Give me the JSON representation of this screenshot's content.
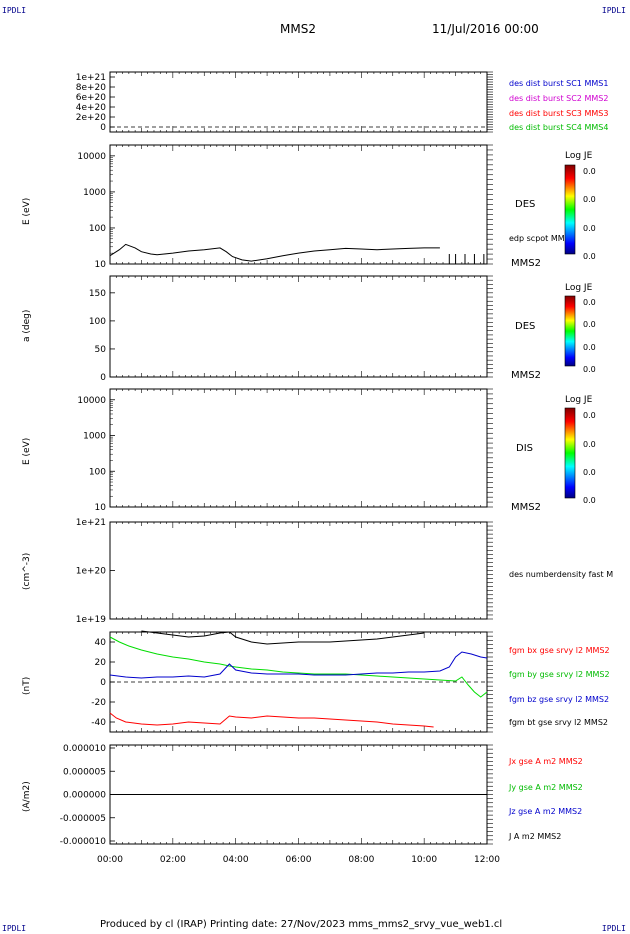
{
  "corners": {
    "tl": "IPDLI",
    "tr": "IPDLI",
    "bl": "IPDLI",
    "br": "IPDLI"
  },
  "header": {
    "spacecraft": "MMS2",
    "date": "11/Jul/2016 00:00"
  },
  "footer": {
    "text": "Produced by cl (IRAP)   Printing date: 27/Nov/2023   mms_mms2_srvy_vue_web1.cl"
  },
  "colors": {
    "black": "#000000",
    "red": "#ff0000",
    "green": "#00dd00",
    "blue": "#0000cc",
    "magenta": "#d000d0"
  },
  "panels": {
    "p1": {
      "ylabel": "",
      "ticks": [
        "1e+21",
        "8e+20",
        "6e+20",
        "4e+20",
        "2e+20",
        "0"
      ],
      "legend": [
        {
          "text": "des dist burst SC1 MMS1",
          "color": "#0000cc"
        },
        {
          "text": "des dist burst SC2 MMS2",
          "color": "#d000d0"
        },
        {
          "text": "des dist burst SC3 MMS3",
          "color": "#ff0000"
        },
        {
          "text": "des dist burst SC4 MMS4",
          "color": "#00bb00"
        }
      ]
    },
    "p2": {
      "ylabel": "E (eV)",
      "ticks": [
        "10000",
        "1000",
        "100",
        "10"
      ],
      "species": "DES",
      "spacecraft": "MMS2",
      "extra": "edp scpot MMS2",
      "cbar_title": "Log JE",
      "cbar_ticks": [
        "0.0",
        "0.0",
        "0.0",
        "0.0"
      ]
    },
    "p3": {
      "ylabel": "a (deg)",
      "ticks": [
        "150",
        "100",
        "50",
        "0"
      ],
      "species": "DES",
      "spacecraft": "MMS2",
      "cbar_title": "Log JE",
      "cbar_ticks": [
        "0.0",
        "0.0",
        "0.0",
        "0.0"
      ]
    },
    "p4": {
      "ylabel": "E (eV)",
      "ticks": [
        "10000",
        "1000",
        "100",
        "10"
      ],
      "species": "DIS",
      "spacecraft": "MMS2",
      "cbar_title": "Log JE",
      "cbar_ticks": [
        "0.0",
        "0.0",
        "0.0",
        "0.0"
      ]
    },
    "p5": {
      "ylabel": "(cm^-3)",
      "ticks": [
        "1e+21",
        "1e+20",
        "1e+19"
      ],
      "legend": "des numberdensity fast M"
    },
    "p6": {
      "ylabel": "(nT)",
      "ticks": [
        "40",
        "20",
        "0",
        "-20",
        "-40"
      ],
      "legend": [
        {
          "text": "fgm bx gse srvy l2 MMS2",
          "color": "#ff0000"
        },
        {
          "text": "fgm by gse srvy l2 MMS2",
          "color": "#00bb00"
        },
        {
          "text": "fgm bz gse srvy l2 MMS2",
          "color": "#0000cc"
        },
        {
          "text": "fgm bt gse srvy l2 MMS2",
          "color": "#000000"
        }
      ]
    },
    "p7": {
      "ylabel": "(A/m2)",
      "ticks": [
        "0.000010",
        "0.000005",
        "0.000000",
        "-0.000005",
        "-0.000010"
      ],
      "legend": [
        {
          "text": "Jx gse A m2 MMS2",
          "color": "#ff0000"
        },
        {
          "text": "Jy gse A m2 MMS2",
          "color": "#00bb00"
        },
        {
          "text": "Jz gse A m2 MMS2",
          "color": "#0000cc"
        },
        {
          "text": "J A m2 MMS2",
          "color": "#000000"
        }
      ]
    }
  },
  "xaxis": {
    "ticks": [
      "00:00",
      "02:00",
      "04:00",
      "06:00",
      "08:00",
      "10:00",
      "12:00"
    ]
  },
  "chart_data": [
    {
      "type": "line",
      "panel": "p2",
      "title": "",
      "ylabel": "E (eV)",
      "yscale": "log",
      "ylim": [
        10,
        20000
      ],
      "xlim": [
        0,
        12
      ],
      "series": [
        {
          "name": "edp scpot MMS2",
          "color": "#000000",
          "x": [
            0,
            0.3,
            0.5,
            0.8,
            1.0,
            1.3,
            1.5,
            2.0,
            2.5,
            3.0,
            3.5,
            3.7,
            3.9,
            4.2,
            4.5,
            5.0,
            5.5,
            6.0,
            6.5,
            7.0,
            7.5,
            8.0,
            8.5,
            9.0,
            9.5,
            10.0,
            10.5
          ],
          "y": [
            17,
            25,
            35,
            28,
            22,
            19,
            18,
            20,
            23,
            25,
            28,
            22,
            16,
            13,
            12,
            14,
            17,
            20,
            23,
            25,
            27,
            26,
            25,
            26,
            27,
            28,
            28
          ]
        }
      ]
    },
    {
      "type": "line",
      "panel": "p6",
      "title": "",
      "ylabel": "(nT)",
      "ylim": [
        -50,
        50
      ],
      "xlim": [
        0,
        12
      ],
      "series": [
        {
          "name": "fgm bx gse srvy l2 MMS2",
          "color": "#ff0000",
          "x": [
            0,
            0.2,
            0.5,
            1.0,
            1.5,
            2.0,
            2.5,
            3.0,
            3.5,
            3.8,
            4.0,
            4.5,
            5.0,
            5.5,
            6.0,
            6.5,
            7.0,
            7.5,
            8.0,
            8.5,
            9.0,
            9.5,
            10.0,
            10.3
          ],
          "y": [
            -31,
            -36,
            -40,
            -42,
            -43,
            -42,
            -40,
            -41,
            -42,
            -34,
            -35,
            -36,
            -34,
            -35,
            -36,
            -36,
            -37,
            -38,
            -39,
            -40,
            -42,
            -43,
            -44,
            -45
          ]
        },
        {
          "name": "fgm by gse srvy l2 MMS2",
          "color": "#00dd00",
          "x": [
            0,
            0.3,
            0.6,
            1.0,
            1.5,
            2.0,
            2.5,
            3.0,
            3.5,
            3.8,
            4.0,
            4.5,
            5.0,
            5.5,
            6.0,
            6.5,
            7.0,
            7.5,
            8.0,
            8.5,
            9.0,
            9.5,
            10.0,
            10.5,
            11.0,
            11.2,
            11.4,
            11.6,
            11.8,
            12.0
          ],
          "y": [
            45,
            40,
            36,
            32,
            28,
            25,
            23,
            20,
            18,
            16,
            15,
            13,
            12,
            10,
            9,
            8,
            8,
            8,
            7,
            6,
            5,
            4,
            3,
            2,
            1,
            5,
            -3,
            -10,
            -15,
            -10
          ]
        },
        {
          "name": "fgm bz gse srvy l2 MMS2",
          "color": "#0000cc",
          "x": [
            0,
            0.5,
            1.0,
            1.5,
            2.0,
            2.5,
            3.0,
            3.5,
            3.8,
            4.0,
            4.5,
            5.0,
            5.5,
            6.0,
            6.5,
            7.0,
            7.5,
            8.0,
            8.5,
            9.0,
            9.5,
            10.0,
            10.5,
            10.8,
            11.0,
            11.2,
            11.5,
            11.8,
            12.0
          ],
          "y": [
            7,
            5,
            4,
            5,
            5,
            6,
            5,
            8,
            18,
            12,
            9,
            8,
            8,
            8,
            7,
            7,
            7,
            8,
            9,
            9,
            10,
            10,
            11,
            15,
            25,
            30,
            28,
            25,
            24
          ]
        },
        {
          "name": "fgm bt gse srvy l2 MMS2",
          "color": "#000000",
          "x": [
            1.0,
            1.5,
            2.0,
            2.5,
            3.0,
            3.5,
            3.8,
            4.0,
            4.5,
            5.0,
            5.5,
            6.0,
            6.5,
            7.0,
            7.5,
            8.0,
            8.5,
            9.0,
            9.5,
            10.0
          ],
          "y": [
            51,
            49,
            47,
            45,
            46,
            49,
            50,
            45,
            40,
            38,
            39,
            40,
            40,
            40,
            41,
            42,
            43,
            45,
            47,
            49
          ]
        }
      ]
    },
    {
      "type": "line",
      "panel": "p7",
      "title": "",
      "ylabel": "(A/m2)",
      "ylim": [
        -1e-05,
        1e-05
      ],
      "xlim": [
        0,
        12
      ],
      "series": [
        {
          "name": "J A m2 MMS2",
          "color": "#000000",
          "x": [
            0,
            12
          ],
          "y": [
            0.0,
            0.0
          ]
        }
      ]
    }
  ]
}
